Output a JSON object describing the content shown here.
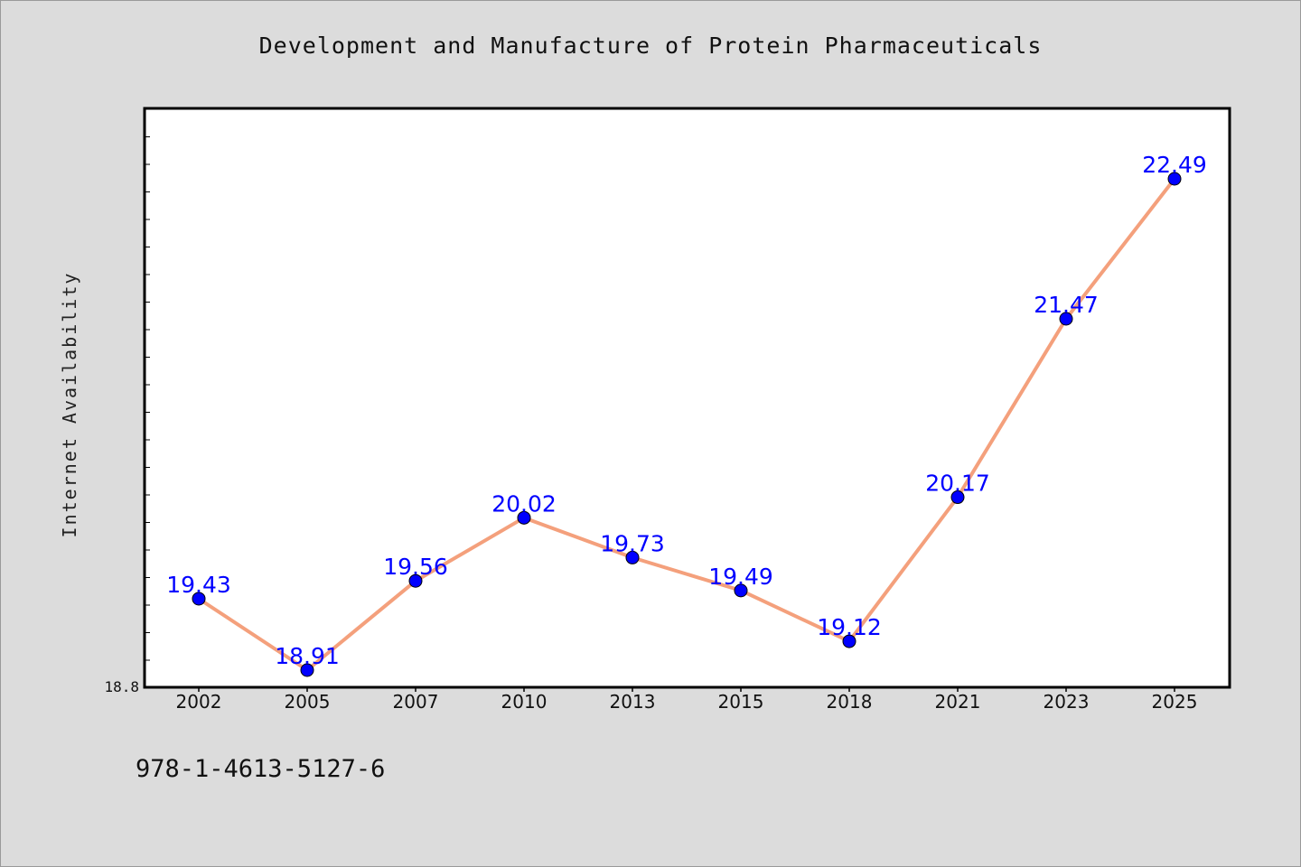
{
  "chart_data": {
    "type": "line",
    "title": "Development and Manufacture of Protein Pharmaceuticals",
    "xlabel": "",
    "ylabel": "Internet Availability",
    "categories": [
      "2002",
      "2005",
      "2007",
      "2010",
      "2013",
      "2015",
      "2018",
      "2021",
      "2023",
      "2025"
    ],
    "values": [
      19.43,
      18.91,
      19.56,
      20.02,
      19.73,
      19.49,
      19.12,
      20.17,
      21.47,
      22.49
    ],
    "ylim": [
      18.8,
      23.0
    ],
    "y_tick_labels": [
      "18.8"
    ],
    "data_labels": [
      "19.43",
      "18.91",
      "19.56",
      "20.02",
      "19.73",
      "19.49",
      "19.12",
      "20.17",
      "21.47",
      "22.49"
    ],
    "line_color": "#f4a07c",
    "marker_color": "#0000ff",
    "label_color": "#0000ff",
    "grid": false,
    "legend": "none"
  },
  "footer": {
    "isbn": "978-1-4613-5127-6"
  }
}
